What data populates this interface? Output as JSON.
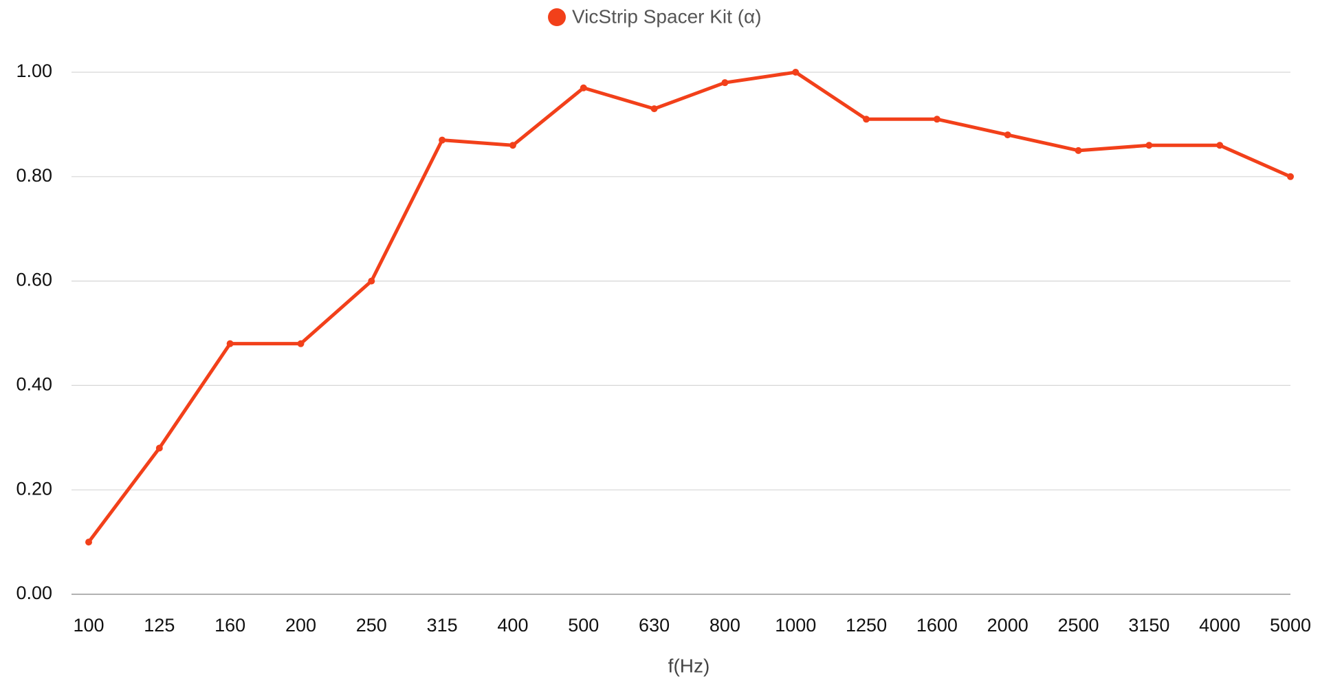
{
  "chart_data": {
    "type": "line",
    "legend_position": "top",
    "x_label": "f(Hz)",
    "categories": [
      "100",
      "125",
      "160",
      "200",
      "250",
      "315",
      "400",
      "500",
      "630",
      "800",
      "1000",
      "1250",
      "1600",
      "2000",
      "2500",
      "3150",
      "4000",
      "5000"
    ],
    "series": [
      {
        "name": "VicStrip Spacer Kit (α)",
        "color": "#f2401a",
        "values": [
          0.1,
          0.28,
          0.48,
          0.48,
          0.6,
          0.87,
          0.86,
          0.97,
          0.93,
          0.98,
          1.0,
          0.91,
          0.91,
          0.88,
          0.85,
          0.86,
          0.86,
          0.8
        ]
      }
    ],
    "ylim": [
      0,
      1
    ],
    "yticks": [
      {
        "value": 0,
        "label": "0.00"
      },
      {
        "value": 0.2,
        "label": "0.20"
      },
      {
        "value": 0.4,
        "label": "0.40"
      },
      {
        "value": 0.6,
        "label": "0.60"
      },
      {
        "value": 0.8,
        "label": "0.80"
      },
      {
        "value": 1,
        "label": "1.00"
      }
    ],
    "grid": true
  }
}
